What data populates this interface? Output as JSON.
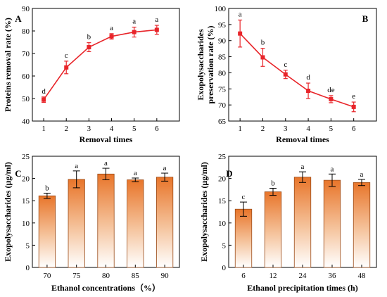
{
  "chart_data": [
    {
      "panel": "A",
      "type": "line",
      "x": [
        1,
        2,
        3,
        4,
        5,
        6
      ],
      "values": [
        49.5,
        63.8,
        72.8,
        77.6,
        79.5,
        80.5
      ],
      "errors": [
        1.2,
        2.8,
        2.0,
        1.2,
        2.2,
        2.0
      ],
      "letters": [
        "d",
        "c",
        "b",
        "a",
        "a",
        "a"
      ],
      "xlabel": "Removal times",
      "ylabel": "Proteins removal rate (%)",
      "ylim": [
        40,
        90
      ],
      "yticks": [
        40,
        50,
        60,
        70,
        80,
        90
      ],
      "xticks": [
        1,
        2,
        3,
        4,
        5,
        6
      ],
      "color": "#e8252a"
    },
    {
      "panel": "B",
      "type": "line",
      "x": [
        1,
        2,
        3,
        4,
        5,
        6
      ],
      "values": [
        92.2,
        84.8,
        79.5,
        74.4,
        71.8,
        69.4
      ],
      "errors": [
        4.2,
        2.8,
        1.3,
        2.4,
        1.1,
        1.5
      ],
      "letters": [
        "a",
        "b",
        "c",
        "d",
        "de",
        "e"
      ],
      "xlabel": "Removal times",
      "ylabel_lines": [
        "Exopolysaccharides",
        "preservation rate (%)"
      ],
      "ylim": [
        65,
        100
      ],
      "yticks": [
        65,
        70,
        75,
        80,
        85,
        90,
        95,
        100
      ],
      "xticks": [
        1,
        2,
        3,
        4,
        5,
        6
      ],
      "color": "#e8252a"
    },
    {
      "panel": "C",
      "type": "bar",
      "categories": [
        "70",
        "75",
        "80",
        "85",
        "90"
      ],
      "values": [
        16.1,
        19.8,
        21.0,
        19.7,
        20.3
      ],
      "errors": [
        0.6,
        1.9,
        1.3,
        0.4,
        0.9
      ],
      "letters": [
        "b",
        "a",
        "a",
        "a",
        "a"
      ],
      "xlabel": "Ethanol concentrations（%）",
      "ylabel": "Exopolysaccharides (μg/ml)",
      "ylim": [
        0,
        25
      ],
      "yticks": [
        0,
        5,
        10,
        15,
        20,
        25
      ],
      "color": "#e8752a"
    },
    {
      "panel": "D",
      "type": "bar",
      "categories": [
        "6",
        "12",
        "24",
        "36",
        "48"
      ],
      "values": [
        13.1,
        17.0,
        20.3,
        19.6,
        19.1
      ],
      "errors": [
        1.6,
        0.8,
        1.2,
        1.4,
        0.7
      ],
      "letters": [
        "c",
        "b",
        "a",
        "a",
        "a"
      ],
      "xlabel": "Ethanol precipitation times (h)",
      "ylabel": "Exopolysaccharides (μg/ml)",
      "ylim": [
        0,
        25
      ],
      "yticks": [
        0,
        5,
        10,
        15,
        20,
        25
      ],
      "color": "#e8752a"
    }
  ]
}
